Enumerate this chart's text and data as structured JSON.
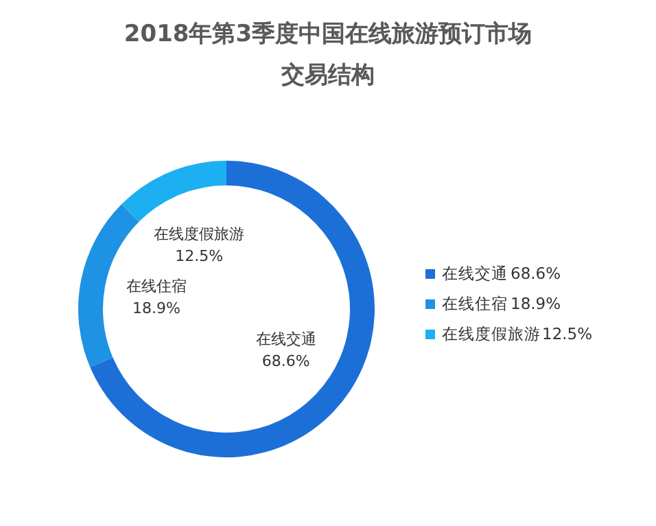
{
  "chart_data": {
    "type": "donut",
    "title": "2018年第3季度中国在线旅游预订市场交易结构",
    "categories": [
      "在线交通",
      "在线住宿",
      "在线度假旅游"
    ],
    "values": [
      68.6,
      18.9,
      12.5
    ],
    "value_labels": [
      "68.6%",
      "18.9%",
      "12.5%"
    ],
    "colors": [
      "#1d6fd8",
      "#1e92e3",
      "#1cb0f2"
    ],
    "data_labels": true,
    "legend": "right"
  }
}
